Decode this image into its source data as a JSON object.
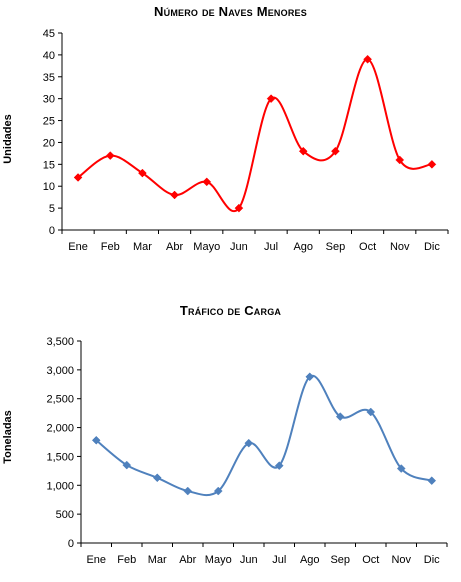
{
  "chart_data": [
    {
      "type": "line",
      "title": "Número de Naves Menores",
      "xlabel": "",
      "ylabel": "Unidades",
      "categories": [
        "Ene",
        "Feb",
        "Mar",
        "Abr",
        "Mayo",
        "Jun",
        "Jul",
        "Ago",
        "Sep",
        "Oct",
        "Nov",
        "Dic"
      ],
      "yticks": [
        "0",
        "5",
        "10",
        "15",
        "20",
        "25",
        "30",
        "35",
        "40",
        "45"
      ],
      "ylim": [
        0,
        45
      ],
      "ystep": 5,
      "grid": false,
      "smooth": true,
      "marker": "diamond",
      "color": "#ff0000",
      "series": [
        {
          "values": [
            12,
            17,
            13,
            8,
            11,
            5,
            30,
            18,
            18,
            39,
            16,
            15
          ]
        }
      ]
    },
    {
      "type": "line",
      "title": "Tráfico de Carga",
      "xlabel": "",
      "ylabel": "Toneladas",
      "categories": [
        "Ene",
        "Feb",
        "Mar",
        "Abr",
        "Mayo",
        "Jun",
        "Jul",
        "Ago",
        "Sep",
        "Oct",
        "Nov",
        "Dic"
      ],
      "yticks": [
        "0",
        "500",
        "1,000",
        "1,500",
        "2,000",
        "2,500",
        "3,000",
        "3,500"
      ],
      "ylim": [
        0,
        3500
      ],
      "ystep": 500,
      "grid": false,
      "smooth": true,
      "marker": "diamond",
      "color": "#4f81bd",
      "series": [
        {
          "values": [
            1780,
            1350,
            1130,
            900,
            900,
            1730,
            1340,
            2880,
            2190,
            2270,
            1290,
            1080
          ]
        }
      ]
    }
  ]
}
